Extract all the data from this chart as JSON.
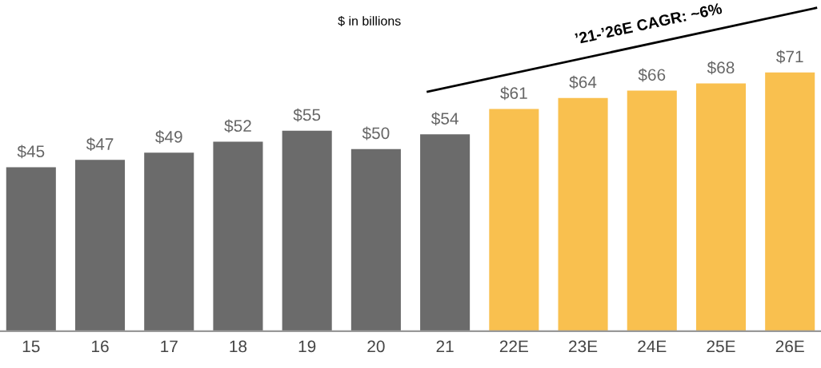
{
  "chart_data": {
    "type": "bar",
    "subtitle": "$ in billions",
    "categories": [
      "15",
      "16",
      "17",
      "18",
      "19",
      "20",
      "21",
      "22E",
      "23E",
      "24E",
      "25E",
      "26E"
    ],
    "values": [
      45,
      47,
      49,
      52,
      55,
      50,
      54,
      61,
      64,
      66,
      68,
      71
    ],
    "value_labels": [
      "$45",
      "$47",
      "$49",
      "$52",
      "$55",
      "$50",
      "$54",
      "$61",
      "$64",
      "$66",
      "$68",
      "$71"
    ],
    "colors": [
      "#6b6b6b",
      "#6b6b6b",
      "#6b6b6b",
      "#6b6b6b",
      "#6b6b6b",
      "#6b6b6b",
      "#6b6b6b",
      "#f9c04f",
      "#f9c04f",
      "#f9c04f",
      "#f9c04f",
      "#f9c04f"
    ],
    "tick_labels": "x",
    "annotations": [
      "’21-’26E CAGR: ~6%"
    ]
  }
}
